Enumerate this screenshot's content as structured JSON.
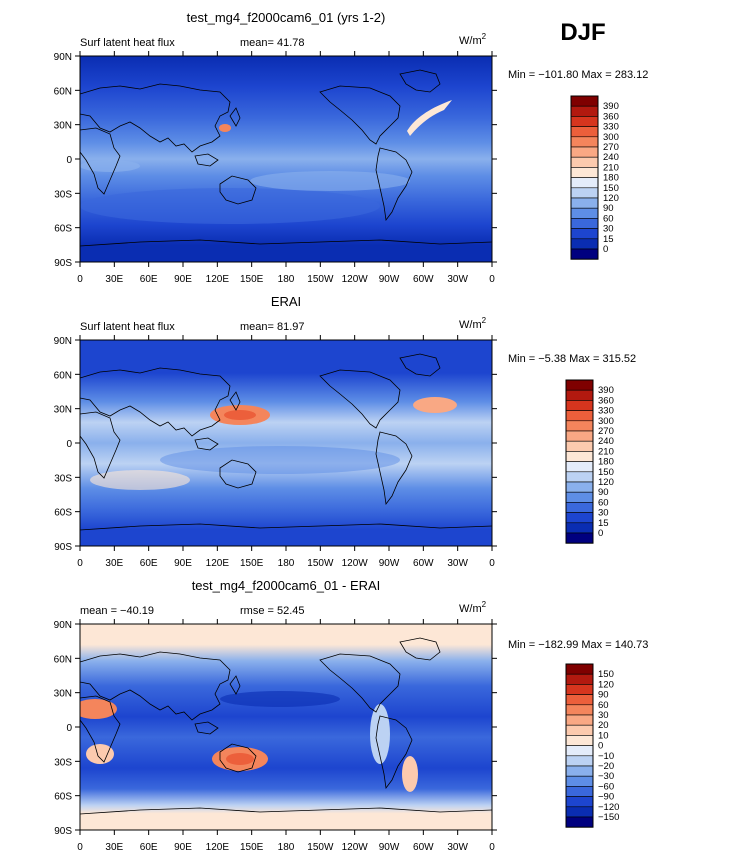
{
  "season": "DJF",
  "chart_data": [
    {
      "type": "heatmap",
      "title": "test_mg4_f2000cam6_01 (yrs 1-2)",
      "variable": "Surf latent heat flux",
      "stat_text": "mean=  41.78",
      "units_base": "W/m",
      "units_exp": "2",
      "minmax": "Min = −101.80 Max = 283.12",
      "colorbar_labels": [
        "390",
        "360",
        "330",
        "300",
        "270",
        "240",
        "210",
        "180",
        "150",
        "120",
        "90",
        "60",
        "30",
        "15",
        "0"
      ],
      "colors": [
        "#7f0000",
        "#b2190f",
        "#d6351e",
        "#ec5f3b",
        "#f4855c",
        "#f9a884",
        "#fccaae",
        "#fde7d6",
        "#e4ecfa",
        "#bcd2f3",
        "#8ab0ec",
        "#5e8ee6",
        "#3a68dc",
        "#1d45cf",
        "#0a2db2",
        "#00007f"
      ],
      "xticks": [
        "0",
        "30E",
        "60E",
        "90E",
        "120E",
        "150E",
        "180",
        "150W",
        "120W",
        "90W",
        "60W",
        "30W",
        "0"
      ],
      "yticks": [
        "90N",
        "60N",
        "30N",
        "0",
        "30S",
        "60S",
        "90S"
      ]
    },
    {
      "type": "heatmap",
      "title": "ERAI",
      "variable": "Surf latent heat flux",
      "stat_text": "mean=  81.97",
      "units_base": "W/m",
      "units_exp": "2",
      "minmax": "Min =  −5.38 Max = 315.52",
      "colorbar_labels": [
        "390",
        "360",
        "330",
        "300",
        "270",
        "240",
        "210",
        "180",
        "150",
        "120",
        "90",
        "60",
        "30",
        "15",
        "0"
      ],
      "colors": [
        "#7f0000",
        "#b2190f",
        "#d6351e",
        "#ec5f3b",
        "#f4855c",
        "#f9a884",
        "#fccaae",
        "#fde7d6",
        "#e4ecfa",
        "#bcd2f3",
        "#8ab0ec",
        "#5e8ee6",
        "#3a68dc",
        "#1d45cf",
        "#0a2db2",
        "#00007f"
      ],
      "xticks": [
        "0",
        "30E",
        "60E",
        "90E",
        "120E",
        "150E",
        "180",
        "150W",
        "120W",
        "90W",
        "60W",
        "30W",
        "0"
      ],
      "yticks": [
        "90N",
        "60N",
        "30N",
        "0",
        "30S",
        "60S",
        "90S"
      ]
    },
    {
      "type": "heatmap",
      "title": "test_mg4_f2000cam6_01 - ERAI",
      "variable": "",
      "stat_text": "mean = −40.19",
      "stat_text2": "rmse =  52.45",
      "units_base": "W/m",
      "units_exp": "2",
      "minmax": "Min = −182.99 Max = 140.73",
      "colorbar_labels": [
        "150",
        "120",
        "90",
        "60",
        "30",
        "20",
        "10",
        "0",
        "−10",
        "−20",
        "−30",
        "−60",
        "−90",
        "−120",
        "−150"
      ],
      "colors": [
        "#7f0000",
        "#b2190f",
        "#d6351e",
        "#ec5f3b",
        "#f4855c",
        "#f9a884",
        "#fccaae",
        "#fde7d6",
        "#e4ecfa",
        "#bcd2f3",
        "#8ab0ec",
        "#5e8ee6",
        "#3a68dc",
        "#1d45cf",
        "#0a2db2",
        "#00007f"
      ],
      "xticks": [
        "0",
        "30E",
        "60E",
        "90E",
        "120E",
        "150E",
        "180",
        "150W",
        "120W",
        "90W",
        "60W",
        "30W",
        "0"
      ],
      "yticks": [
        "90N",
        "60N",
        "30N",
        "0",
        "30S",
        "60S",
        "90S"
      ]
    }
  ]
}
